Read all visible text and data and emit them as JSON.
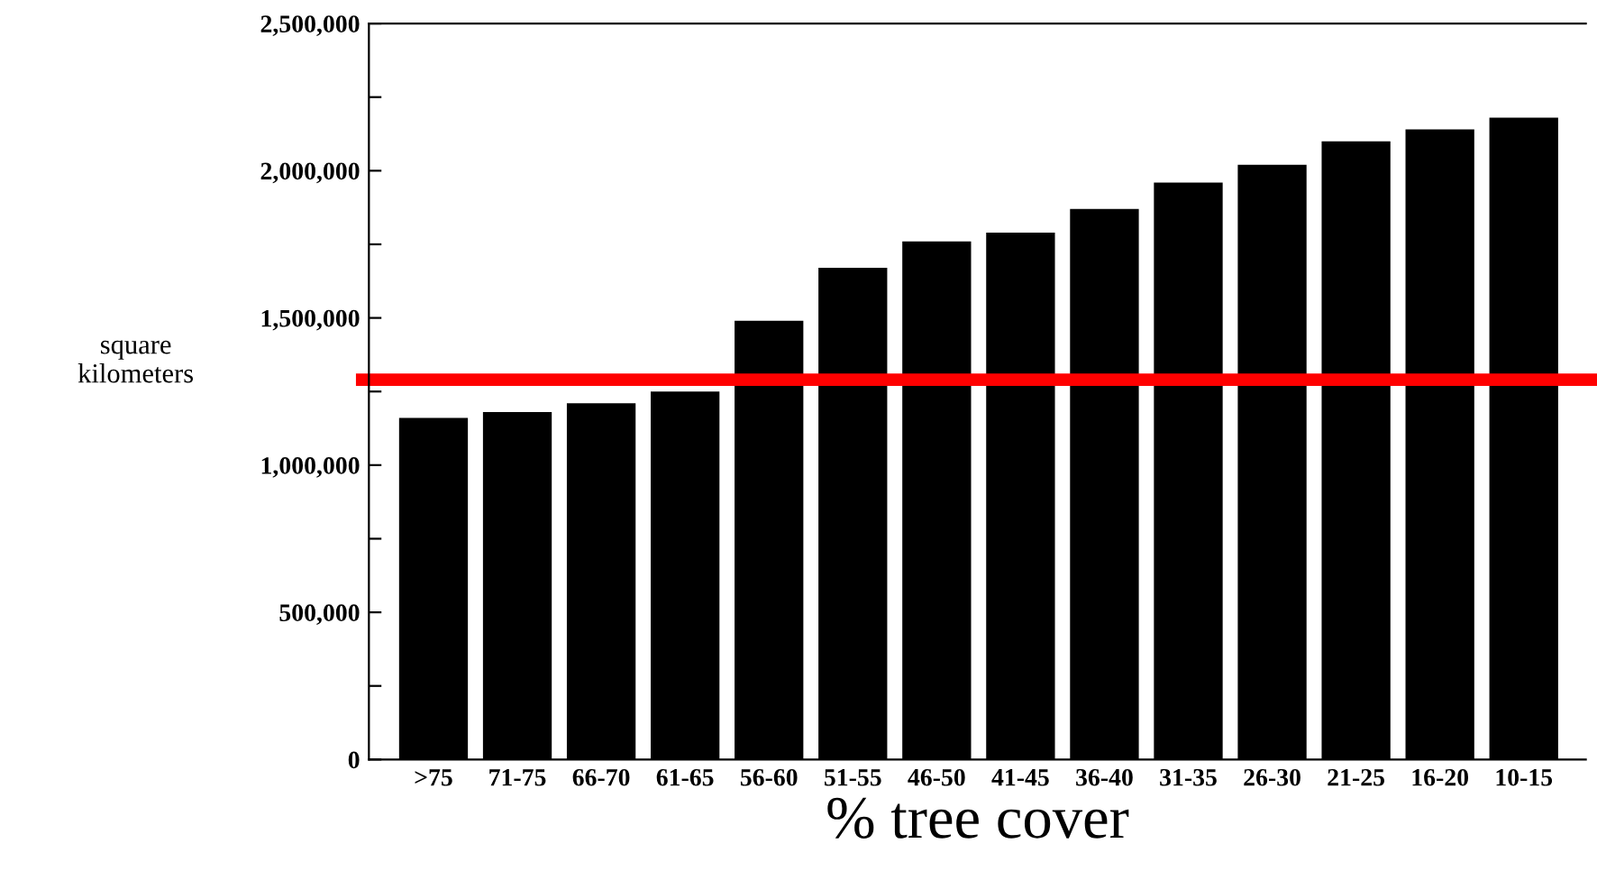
{
  "chart_data": {
    "type": "bar",
    "xlabel": "% tree cover",
    "ylabel": "square\nkilometers",
    "categories": [
      ">75",
      "71-75",
      "66-70",
      "61-65",
      "56-60",
      "51-55",
      "46-50",
      "41-45",
      "36-40",
      "31-35",
      "26-30",
      "21-25",
      "16-20",
      "10-15"
    ],
    "values": [
      1160000,
      1180000,
      1210000,
      1250000,
      1490000,
      1670000,
      1760000,
      1790000,
      1870000,
      1960000,
      2020000,
      2100000,
      2140000,
      2180000
    ],
    "color": "#000000",
    "ylim": [
      0,
      2500000
    ],
    "yticks": [
      0,
      {
        "value": 250000,
        "label": null
      },
      {
        "value": 500000,
        "label": "500,000"
      },
      {
        "value": 750000,
        "label": null
      },
      {
        "value": 1000000,
        "label": "1,000,000"
      },
      {
        "value": 1250000,
        "label": null
      },
      {
        "value": 1500000,
        "label": "1,500,000"
      },
      {
        "value": 1750000,
        "label": null
      },
      {
        "value": 2000000,
        "label": "2,000,000"
      },
      {
        "value": 2250000,
        "label": null
      },
      {
        "value": 2500000,
        "label": "2,500,000"
      }
    ],
    "ref_lines": [
      {
        "axis": "y",
        "value": 1290000,
        "color": "#ff0000",
        "line_style": "solid"
      }
    ],
    "grid": false,
    "legend": false
  }
}
